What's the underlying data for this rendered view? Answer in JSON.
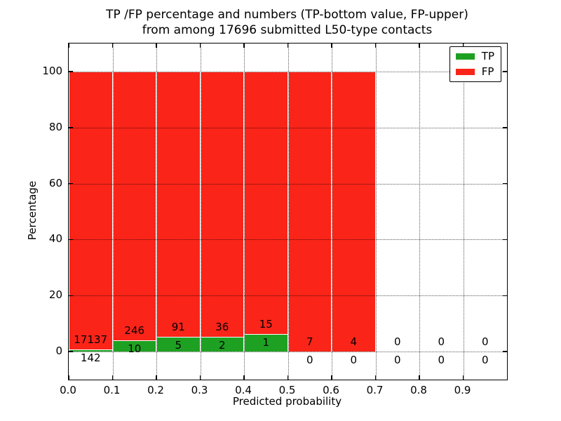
{
  "title": {
    "line1": "TP /FP percentage and numbers (TP-bottom value, FP-upper)",
    "line2": "from among 17696 submitted L50-type contacts"
  },
  "axes": {
    "xlabel": "Predicted probability",
    "ylabel": "Percentage",
    "x_tick_labels": [
      "0.0",
      "0.1",
      "0.2",
      "0.3",
      "0.4",
      "0.5",
      "0.6",
      "0.7",
      "0.8",
      "0.9"
    ],
    "y_tick_labels": [
      "0",
      "20",
      "40",
      "60",
      "80",
      "100"
    ],
    "xlim": [
      0.0,
      1.0
    ],
    "ylim": [
      -10,
      110
    ],
    "grid_style": "dotted"
  },
  "legend": {
    "position": "upper right",
    "items": [
      {
        "label": "TP",
        "color": "#1ea122"
      },
      {
        "label": "FP",
        "color": "#fa2419"
      }
    ]
  },
  "chart_data": {
    "type": "bar",
    "stacked": true,
    "units": "percent of bin total (TP+FP)",
    "bin_starts": [
      0.0,
      0.1,
      0.2,
      0.3,
      0.4,
      0.5,
      0.6,
      0.7,
      0.8,
      0.9
    ],
    "bin_width": 0.1,
    "series": [
      {
        "name": "TP",
        "color": "#1ea122",
        "counts": [
          142,
          10,
          5,
          2,
          1,
          0,
          0,
          0,
          0,
          0
        ]
      },
      {
        "name": "FP",
        "color": "#fa2419",
        "counts": [
          17137,
          246,
          91,
          36,
          15,
          7,
          4,
          0,
          0,
          0
        ]
      }
    ],
    "percent_tp_per_bin": [
      0.82,
      3.91,
      5.21,
      5.26,
      6.25,
      0,
      0,
      null,
      null,
      null
    ],
    "total_submitted": 17696,
    "label_note": "TP count printed below segment top, FP count printed above"
  }
}
